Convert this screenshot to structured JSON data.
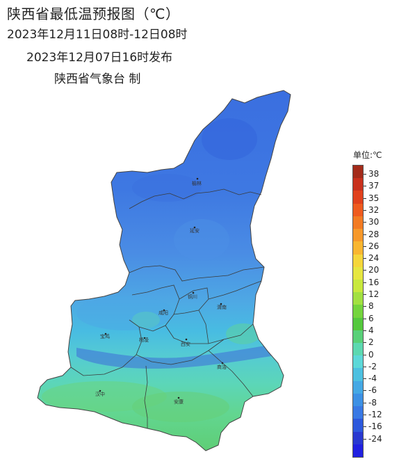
{
  "title": {
    "main": "陕西省最低温预报图（℃）",
    "period": "2023年12月11日08时-12日08时",
    "issued": "2023年12月07日16时发布",
    "issuer": "陕西省气象台 制"
  },
  "legend": {
    "title": "单位:℃",
    "ticks": [
      "38",
      "37",
      "35",
      "32",
      "30",
      "28",
      "26",
      "24",
      "20",
      "16",
      "12",
      "8",
      "6",
      "4",
      "2",
      "0",
      "-2",
      "-4",
      "-6",
      "-8",
      "-12",
      "-16",
      "-24"
    ],
    "colors": [
      "#a32b1a",
      "#c8301c",
      "#e0401c",
      "#ee5a1e",
      "#f27a22",
      "#f6982a",
      "#f9b630",
      "#f5d63a",
      "#e6e640",
      "#c8e83c",
      "#a2e040",
      "#74d43c",
      "#54c83c",
      "#58d078",
      "#5cd8b0",
      "#5cd8d8",
      "#4cc0e0",
      "#44a8e4",
      "#3c90e4",
      "#3878e4",
      "#2c58dc",
      "#2838d0",
      "#2020e0"
    ]
  },
  "cities": [
    {
      "id": "yulin",
      "label": "榆林"
    },
    {
      "id": "yanan",
      "label": "延安"
    },
    {
      "id": "tongchuan",
      "label": "铜川"
    },
    {
      "id": "xianyang",
      "label": "咸阳"
    },
    {
      "id": "weinan",
      "label": "渭南"
    },
    {
      "id": "baoji",
      "label": "宝鸡"
    },
    {
      "id": "yangling",
      "label": "杨凌"
    },
    {
      "id": "xian",
      "label": "西安"
    },
    {
      "id": "shangluo",
      "label": "商洛"
    },
    {
      "id": "hanzhong",
      "label": "汉中"
    },
    {
      "id": "ankang",
      "label": "安康"
    }
  ]
}
